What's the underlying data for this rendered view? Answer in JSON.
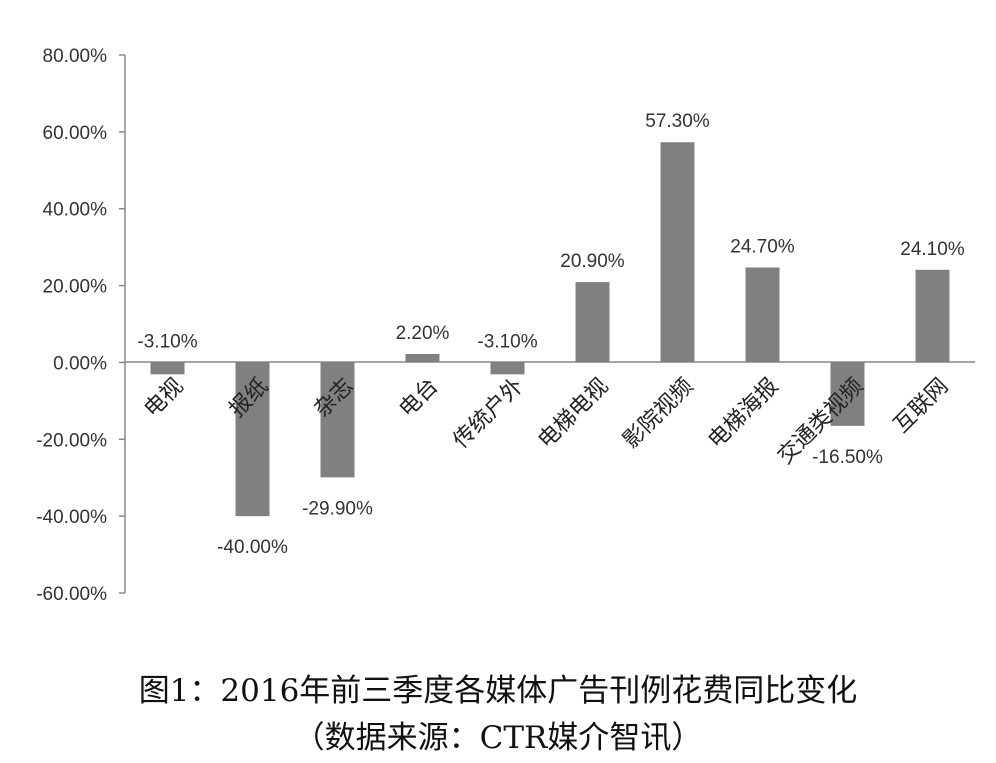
{
  "chart_data": {
    "type": "bar",
    "categories": [
      "电视",
      "报纸",
      "杂志",
      "电台",
      "传统户外",
      "电梯电视",
      "影院视频",
      "电梯海报",
      "交通类视频",
      "互联网"
    ],
    "values": [
      -3.1,
      -40.0,
      -29.9,
      2.2,
      -3.1,
      20.9,
      57.3,
      24.7,
      -16.5,
      24.1
    ],
    "data_labels": [
      "-3.10%",
      "-40.00%",
      "-29.90%",
      "2.20%",
      "-3.10%",
      "20.90%",
      "57.30%",
      "24.70%",
      "-16.50%",
      "24.10%"
    ],
    "ylim": [
      -60,
      80
    ],
    "yticks": [
      80,
      60,
      40,
      20,
      0,
      -20,
      -40,
      -60
    ],
    "ytick_labels": [
      "80.00%",
      "60.00%",
      "40.00%",
      "20.00%",
      "0.00%",
      "-20.00%",
      "-40.00%",
      "-60.00%"
    ],
    "bar_color": "#808080",
    "grid": false,
    "legend": "none"
  },
  "caption": {
    "title": "图1：2016年前三季度各媒体广告刊例花费同比变化",
    "source": "（数据来源：CTR媒介智讯）"
  }
}
